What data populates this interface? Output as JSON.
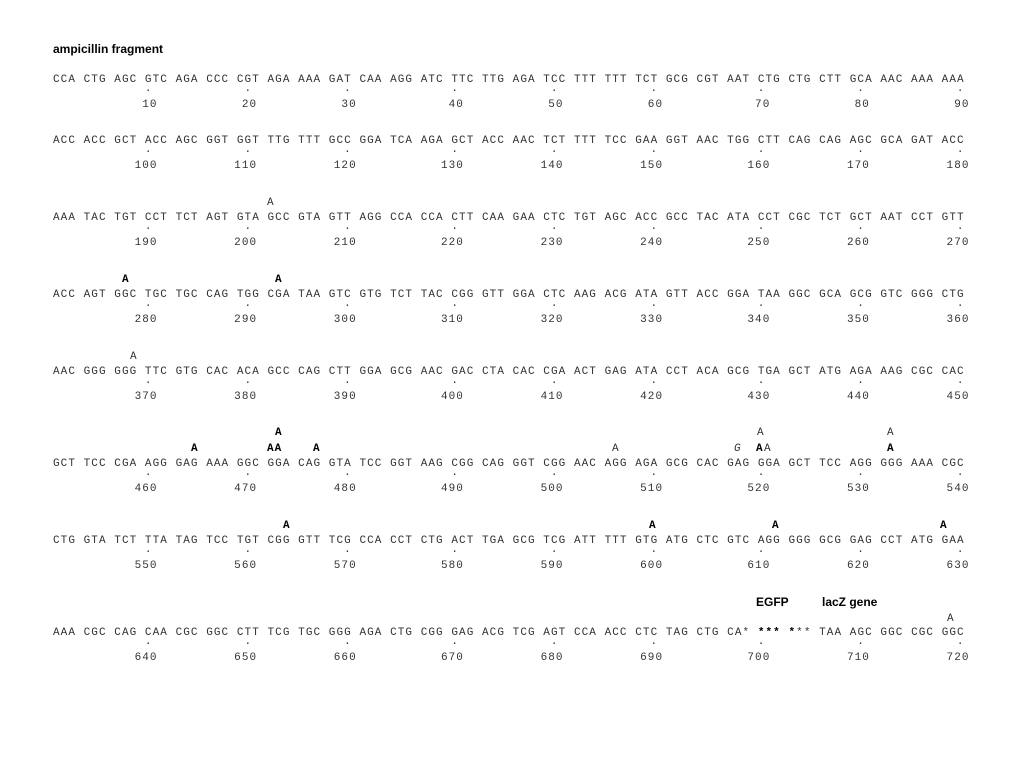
{
  "title": "ampicillin fragment",
  "blocks": [
    {
      "sequence": [
        "CCA CTG AGC GTC AGA CCC CGT AGA AAA GAT CAA AGG ATC TTC TTG AGA TCC TTT TTT TCT GCG CGT AAT CTG CTG CTT GCA AAC AAA AAA"
      ],
      "numbers": [
        10,
        20,
        30,
        40,
        50,
        60,
        70,
        80,
        90
      ]
    },
    {
      "sequence": [
        "ACC ACC GCT ACC AGC GGT GGT TTG TTT GCC GGA TCA AGA GCT ACC AAC TCT TTT TCC GAA GGT AAC TGG CTT CAG CAG AGC GCA GAT ACC"
      ],
      "numbers": [
        100,
        110,
        120,
        130,
        140,
        150,
        160,
        170,
        180
      ]
    },
    {
      "sequence": [
        "AAA TAC TGT CCT TCT AGT GTA GCC GTA GTT AGG CCA CCA CTT CAA GAA CTC TGT AGC ACC GCC TAC ATA CCT CGC TCT GCT AAT CCT GTT"
      ],
      "annotations": [
        "A"
      ],
      "numbers": [
        190,
        200,
        210,
        220,
        230,
        240,
        250,
        260,
        270
      ]
    },
    {
      "sequence": [
        "ACC AGT GGC TGC TGC CAG TGG CGA TAA GTC GTG TCT TAC CGG GTT GGA CTC AAG ACG ATA GTT ACC GGA TAA GGC GCA GCG GTC GGG CTG"
      ],
      "annotations": [
        "A",
        "A"
      ],
      "numbers": [
        280,
        290,
        300,
        310,
        320,
        330,
        340,
        350,
        360
      ]
    },
    {
      "sequence": [
        "AAC GGG GGG TTC GTG CAC ACA GCC CAG CTT GGA GCG AAC GAC CTA CAC CGA ACT GAG ATA CCT ACA GCG TGA GCT ATG AGA AAG CGC CAC"
      ],
      "annotations": [
        "A"
      ],
      "numbers": [
        370,
        380,
        390,
        400,
        410,
        420,
        430,
        440,
        450
      ]
    },
    {
      "sequence": [
        "GCT TCC CGA AGG GAG AAA GGC GGA CAG GTA TCC GGT AAG CGG CAG GGT CGG AAC AGG AGA GCG CAC GAG GGA GCT TCC AGG GGG AAA CGC"
      ],
      "annotations": [
        "A",
        "A",
        "A",
        "A",
        "AA",
        "A",
        "A",
        "G",
        "A",
        "A",
        "A"
      ],
      "numbers": [
        460,
        470,
        480,
        490,
        500,
        510,
        520,
        530,
        540
      ]
    },
    {
      "sequence": [
        "CTG GTA TCT TTA TAG TCC TGT CGG GTT TCG CCA CCT CTG ACT TGA GCG TCG ATT TTT GTG ATG CTC GTC AGG GGG GCG GAG CCT ATG GAA"
      ],
      "annotations": [
        "A",
        "A",
        "A",
        "A"
      ],
      "numbers": [
        550,
        560,
        570,
        580,
        590,
        600,
        610,
        620,
        630
      ]
    },
    {
      "sequence": [
        "AAA CGC CAG CAA CGC GGC CTT TCG TGC GGG AGA CTG CGG GAG ACG TCG AGT CCA ACC CTC TAG CTG CA* ",
        "***",
        " ",
        "*",
        "** TAA AGC GGC CGC GGC"
      ],
      "labels": [
        "EGFP",
        "lacZ gene"
      ],
      "annotations": [
        "A"
      ],
      "numbers": [
        640,
        650,
        660,
        670,
        680,
        690,
        700,
        710,
        720
      ]
    }
  ]
}
